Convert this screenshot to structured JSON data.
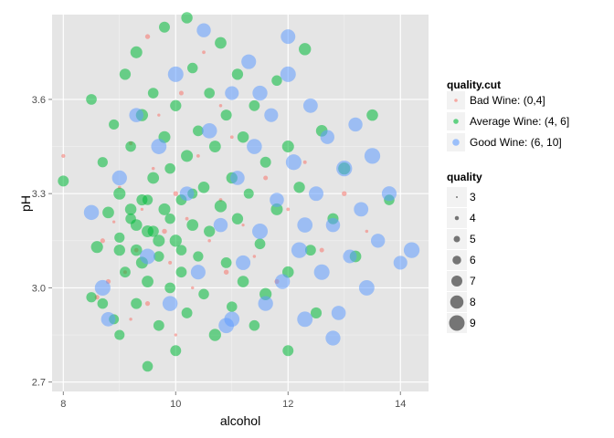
{
  "chart_data": {
    "type": "scatter",
    "title": "",
    "xlabel": "alcohol",
    "ylabel": "pH",
    "xlim": [
      7.8,
      14.5
    ],
    "ylim": [
      2.67,
      3.87
    ],
    "x_ticks": [
      8,
      10,
      12,
      14
    ],
    "y_ticks": [
      2.7,
      3.0,
      3.3,
      3.6
    ],
    "x_tick_labels": [
      "8",
      "10",
      "12",
      "14"
    ],
    "y_tick_labels": [
      "2.7",
      "3.0",
      "3.3",
      "3.6"
    ],
    "grid": true,
    "legend_position": "right",
    "colors": {
      "panel_bg": "#e5e5e5",
      "grid_major": "#ffffff",
      "grid_minor": "#f2f2f2",
      "Bad Wine: (0,4]": "#f8766d",
      "Average Wine: (4, 6]": "#00ba38",
      "Good Wine: (6, 10]": "#619cff",
      "size_key": "#555555"
    },
    "color_legend": {
      "title": "quality.cut",
      "entries": [
        "Bad Wine: (0,4]",
        "Average Wine: (4, 6]",
        "Good Wine: (6, 10]"
      ]
    },
    "size_legend": {
      "title": "quality",
      "entries": [
        "3",
        "4",
        "5",
        "6",
        "7",
        "8",
        "9"
      ]
    },
    "series": [
      {
        "name": "Bad Wine: (0,4]",
        "points": [
          [
            8.0,
            3.42
          ],
          [
            8.6,
            2.97
          ],
          [
            8.7,
            3.15
          ],
          [
            8.8,
            3.02
          ],
          [
            8.9,
            3.21
          ],
          [
            9.0,
            3.32
          ],
          [
            9.1,
            3.05
          ],
          [
            9.2,
            3.46
          ],
          [
            9.3,
            3.12
          ],
          [
            9.4,
            3.25
          ],
          [
            9.5,
            2.95
          ],
          [
            9.6,
            3.38
          ],
          [
            9.7,
            3.55
          ],
          [
            9.8,
            3.18
          ],
          [
            9.9,
            3.08
          ],
          [
            10.0,
            3.3
          ],
          [
            10.1,
            3.62
          ],
          [
            10.2,
            3.22
          ],
          [
            10.3,
            3.0
          ],
          [
            10.4,
            3.42
          ],
          [
            10.5,
            3.75
          ],
          [
            10.6,
            3.15
          ],
          [
            10.8,
            3.28
          ],
          [
            10.9,
            3.05
          ],
          [
            11.0,
            3.48
          ],
          [
            11.2,
            3.2
          ],
          [
            11.4,
            3.1
          ],
          [
            11.6,
            3.35
          ],
          [
            11.8,
            3.02
          ],
          [
            12.0,
            3.25
          ],
          [
            12.3,
            3.4
          ],
          [
            12.6,
            3.12
          ],
          [
            13.0,
            3.3
          ],
          [
            13.4,
            3.18
          ],
          [
            9.5,
            3.8
          ],
          [
            10.0,
            2.85
          ],
          [
            10.8,
            3.58
          ],
          [
            9.2,
            2.9
          ]
        ]
      },
      {
        "name": "Average Wine: (4, 6]",
        "points": [
          [
            8.0,
            3.34
          ],
          [
            8.5,
            3.6
          ],
          [
            8.5,
            2.97
          ],
          [
            8.6,
            3.13
          ],
          [
            8.7,
            3.4
          ],
          [
            8.7,
            2.95
          ],
          [
            8.8,
            3.24
          ],
          [
            8.9,
            2.9
          ],
          [
            8.9,
            3.52
          ],
          [
            9.0,
            3.16
          ],
          [
            9.0,
            3.3
          ],
          [
            9.0,
            2.85
          ],
          [
            9.1,
            3.05
          ],
          [
            9.1,
            3.68
          ],
          [
            9.2,
            3.22
          ],
          [
            9.2,
            3.45
          ],
          [
            9.3,
            2.95
          ],
          [
            9.3,
            3.12
          ],
          [
            9.3,
            3.75
          ],
          [
            9.4,
            3.28
          ],
          [
            9.4,
            3.55
          ],
          [
            9.5,
            3.02
          ],
          [
            9.5,
            3.18
          ],
          [
            9.5,
            2.75
          ],
          [
            9.6,
            3.35
          ],
          [
            9.6,
            3.62
          ],
          [
            9.7,
            3.1
          ],
          [
            9.7,
            2.88
          ],
          [
            9.8,
            3.25
          ],
          [
            9.8,
            3.48
          ],
          [
            9.8,
            3.83
          ],
          [
            9.9,
            3.0
          ],
          [
            9.9,
            3.38
          ],
          [
            10.0,
            3.15
          ],
          [
            10.0,
            3.58
          ],
          [
            10.0,
            2.8
          ],
          [
            10.1,
            3.28
          ],
          [
            10.1,
            3.05
          ],
          [
            10.2,
            3.42
          ],
          [
            10.2,
            3.86
          ],
          [
            10.2,
            2.92
          ],
          [
            10.3,
            3.2
          ],
          [
            10.3,
            3.7
          ],
          [
            10.4,
            3.1
          ],
          [
            10.4,
            3.5
          ],
          [
            10.5,
            2.98
          ],
          [
            10.5,
            3.32
          ],
          [
            10.6,
            3.62
          ],
          [
            10.6,
            3.18
          ],
          [
            10.7,
            2.85
          ],
          [
            10.7,
            3.45
          ],
          [
            10.8,
            3.26
          ],
          [
            10.8,
            3.78
          ],
          [
            10.9,
            3.08
          ],
          [
            10.9,
            3.55
          ],
          [
            11.0,
            3.35
          ],
          [
            11.0,
            2.94
          ],
          [
            11.1,
            3.22
          ],
          [
            11.1,
            3.68
          ],
          [
            11.2,
            3.02
          ],
          [
            11.2,
            3.48
          ],
          [
            11.3,
            3.3
          ],
          [
            11.4,
            2.88
          ],
          [
            11.4,
            3.58
          ],
          [
            11.5,
            3.14
          ],
          [
            11.6,
            3.4
          ],
          [
            11.6,
            2.98
          ],
          [
            11.8,
            3.25
          ],
          [
            11.8,
            3.66
          ],
          [
            12.0,
            3.05
          ],
          [
            12.0,
            2.8
          ],
          [
            12.0,
            3.45
          ],
          [
            12.2,
            3.32
          ],
          [
            12.3,
            3.76
          ],
          [
            12.4,
            3.12
          ],
          [
            12.5,
            2.92
          ],
          [
            12.6,
            3.5
          ],
          [
            12.8,
            3.22
          ],
          [
            13.0,
            3.38
          ],
          [
            13.2,
            3.1
          ],
          [
            13.5,
            3.55
          ],
          [
            13.8,
            3.28
          ],
          [
            9.0,
            3.12
          ],
          [
            9.3,
            3.2
          ],
          [
            9.5,
            3.28
          ],
          [
            9.7,
            3.15
          ],
          [
            9.9,
            3.22
          ],
          [
            10.1,
            3.12
          ],
          [
            10.3,
            3.3
          ],
          [
            9.4,
            3.08
          ],
          [
            9.6,
            3.18
          ],
          [
            9.2,
            3.25
          ]
        ]
      },
      {
        "name": "Good Wine: (6, 10]",
        "points": [
          [
            8.5,
            3.24
          ],
          [
            8.7,
            3.0
          ],
          [
            8.8,
            2.9
          ],
          [
            9.0,
            3.35
          ],
          [
            9.3,
            3.55
          ],
          [
            9.5,
            3.1
          ],
          [
            9.7,
            3.45
          ],
          [
            9.9,
            2.95
          ],
          [
            10.0,
            3.68
          ],
          [
            10.2,
            3.3
          ],
          [
            10.4,
            3.05
          ],
          [
            10.5,
            3.82
          ],
          [
            10.6,
            3.5
          ],
          [
            10.8,
            3.2
          ],
          [
            10.9,
            2.88
          ],
          [
            11.0,
            3.62
          ],
          [
            11.1,
            3.35
          ],
          [
            11.2,
            3.08
          ],
          [
            11.3,
            3.72
          ],
          [
            11.4,
            3.45
          ],
          [
            11.5,
            3.18
          ],
          [
            11.6,
            2.95
          ],
          [
            11.7,
            3.55
          ],
          [
            11.8,
            3.28
          ],
          [
            11.9,
            3.02
          ],
          [
            12.0,
            3.68
          ],
          [
            12.1,
            3.4
          ],
          [
            12.2,
            3.12
          ],
          [
            12.3,
            2.9
          ],
          [
            12.4,
            3.58
          ],
          [
            12.5,
            3.3
          ],
          [
            12.6,
            3.05
          ],
          [
            12.7,
            3.48
          ],
          [
            12.8,
            3.2
          ],
          [
            12.9,
            2.92
          ],
          [
            13.0,
            3.38
          ],
          [
            13.1,
            3.1
          ],
          [
            13.2,
            3.52
          ],
          [
            13.3,
            3.25
          ],
          [
            13.4,
            3.0
          ],
          [
            13.5,
            3.42
          ],
          [
            13.6,
            3.15
          ],
          [
            13.8,
            3.3
          ],
          [
            14.0,
            3.08
          ],
          [
            14.2,
            3.12
          ],
          [
            12.0,
            3.8
          ],
          [
            12.8,
            2.84
          ],
          [
            11.0,
            2.9
          ],
          [
            11.5,
            3.62
          ],
          [
            12.3,
            3.2
          ]
        ]
      }
    ]
  }
}
